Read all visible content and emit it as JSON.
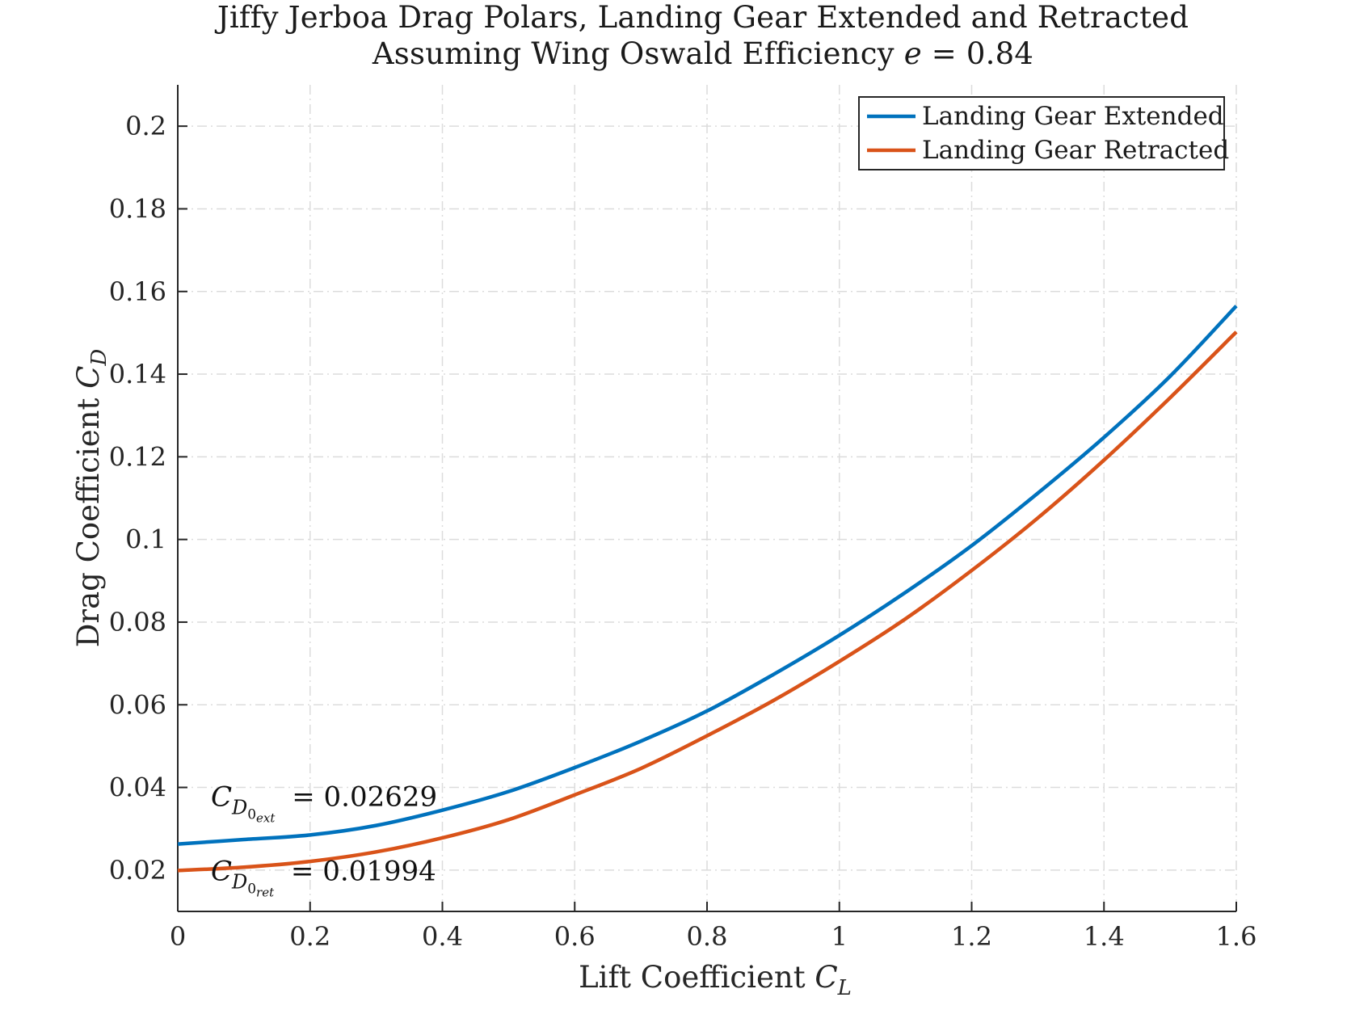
{
  "title": {
    "line1": "Jiffy Jerboa Drag Polars, Landing Gear Extended and Retracted",
    "line2_prefix": "Assuming Wing Oswald Efficiency ",
    "line2_symbol": "e",
    "line2_value": " = 0.84"
  },
  "chart_data": {
    "type": "line",
    "title": "Jiffy Jerboa Drag Polars, Landing Gear Extended and Retracted",
    "subtitle": "Assuming Wing Oswald Efficiency e = 0.84",
    "xlabel": "Lift Coefficient C_L",
    "ylabel": "Drag Coefficient C_D",
    "xlabel_text": "Lift Coefficient ",
    "xlabel_symbol": "C",
    "xlabel_sub": "L",
    "ylabel_text": "Drag Coefficient ",
    "ylabel_symbol": "C",
    "ylabel_sub": "D",
    "xlim": [
      0,
      1.6
    ],
    "ylim": [
      0.01,
      0.21
    ],
    "xticks": [
      0,
      0.2,
      0.4,
      0.6,
      0.8,
      1,
      1.2,
      1.4,
      1.6
    ],
    "xtick_labels": [
      "0",
      "0.2",
      "0.4",
      "0.6",
      "0.8",
      "1",
      "1.2",
      "1.4",
      "1.6"
    ],
    "yticks": [
      0.02,
      0.04,
      0.06,
      0.08,
      0.1,
      0.12,
      0.14,
      0.16,
      0.18,
      0.2
    ],
    "ytick_labels": [
      "0.02",
      "0.04",
      "0.06",
      "0.08",
      "0.1",
      "0.12",
      "0.14",
      "0.16",
      "0.18",
      "0.2"
    ],
    "grid": true,
    "legend_position": "top-right",
    "x": [
      0,
      0.1,
      0.2,
      0.3,
      0.4,
      0.5,
      0.6,
      0.7,
      0.8,
      0.9,
      1.0,
      1.1,
      1.2,
      1.3,
      1.4,
      1.5,
      1.6
    ],
    "series": [
      {
        "name": "Landing Gear Extended",
        "color": "#0072BD",
        "values": [
          0.0263,
          0.0274,
          0.0285,
          0.0308,
          0.0345,
          0.039,
          0.0448,
          0.0512,
          0.0585,
          0.0673,
          0.0768,
          0.0872,
          0.0985,
          0.1112,
          0.1247,
          0.1395,
          0.1565
        ]
      },
      {
        "name": "Landing Gear Retracted",
        "color": "#D95319",
        "values": [
          0.0199,
          0.0207,
          0.0221,
          0.0244,
          0.0278,
          0.0322,
          0.0382,
          0.0446,
          0.0525,
          0.061,
          0.0705,
          0.0808,
          0.0925,
          0.1052,
          0.1192,
          0.1343,
          0.1502
        ]
      }
    ],
    "annotations": [
      {
        "symbol": "C",
        "sub": "D",
        "subsub": "0",
        "subsubsub": "ext",
        "text": " = 0.02629",
        "at_x": 0.05,
        "at_y": 0.0355
      },
      {
        "symbol": "C",
        "sub": "D",
        "subsub": "0",
        "subsubsub": "ret",
        "text": " = 0.01994",
        "at_x": 0.05,
        "at_y": 0.0175
      }
    ]
  }
}
